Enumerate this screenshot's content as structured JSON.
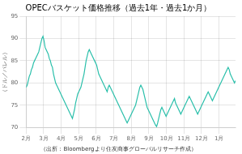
{
  "chart_data": {
    "type": "line",
    "title": "OPECバスケット価格推移（過去1年・過去1か月）",
    "ylabel": "（ドル／バレル）",
    "source": "（出所：Bloombergより住友商事グローバルリサーチ作成）",
    "color": "#2abfaa",
    "grid": true,
    "xlim": [
      0,
      199
    ],
    "xticks": [
      {
        "value": 0,
        "label": "2月"
      },
      {
        "value": 16.666666666666668,
        "label": "3月"
      },
      {
        "value": 33.333333333333336,
        "label": "4月"
      },
      {
        "value": 50,
        "label": "5月"
      },
      {
        "value": 66.66666666666667,
        "label": "6月"
      },
      {
        "value": 83.33333333333333,
        "label": "7月"
      },
      {
        "value": 100,
        "label": "8月"
      },
      {
        "value": 116.66666666666667,
        "label": "9月"
      },
      {
        "value": 133.33333333333334,
        "label": "10月"
      },
      {
        "value": 150,
        "label": "11月"
      },
      {
        "value": 166.66666666666666,
        "label": "12月"
      },
      {
        "value": 183.33333333333334,
        "label": "1月"
      }
    ],
    "ylim": [
      70,
      95
    ],
    "yticks": [
      70,
      75,
      80,
      85,
      90,
      95
    ],
    "x": [
      0,
      1,
      2,
      3,
      4,
      5,
      6,
      7,
      8,
      9,
      10,
      11,
      12,
      13,
      14,
      15,
      16,
      17,
      18,
      19,
      20,
      21,
      22,
      23,
      24,
      25,
      26,
      27,
      28,
      29,
      30,
      31,
      32,
      33,
      34,
      35,
      36,
      37,
      38,
      39,
      40,
      41,
      42,
      43,
      44,
      45,
      46,
      47,
      48,
      49,
      50,
      51,
      52,
      53,
      54,
      55,
      56,
      57,
      58,
      59,
      60,
      61,
      62,
      63,
      64,
      65,
      66,
      67,
      68,
      69,
      70,
      71,
      72,
      73,
      74,
      75,
      76,
      77,
      78,
      79,
      80,
      81,
      82,
      83,
      84,
      85,
      86,
      87,
      88,
      89,
      90,
      91,
      92,
      93,
      94,
      95,
      96,
      97,
      98,
      99,
      100,
      101,
      102,
      103,
      104,
      105,
      106,
      107,
      108,
      109,
      110,
      111,
      112,
      113,
      114,
      115,
      116,
      117,
      118,
      119,
      120,
      121,
      122,
      123,
      124,
      125,
      126,
      127,
      128,
      129,
      130,
      131,
      132,
      133,
      134,
      135,
      136,
      137,
      138,
      139,
      140,
      141,
      142,
      143,
      144,
      145,
      146,
      147,
      148,
      149,
      150,
      151,
      152,
      153,
      154,
      155,
      156,
      157,
      158,
      159,
      160,
      161,
      162,
      163,
      164,
      165,
      166,
      167,
      168,
      169,
      170,
      171,
      172,
      173,
      174,
      175,
      176,
      177,
      178,
      179,
      180,
      181,
      182,
      183,
      184,
      185,
      186,
      187,
      188,
      189,
      190,
      191,
      192,
      193,
      194,
      195,
      196,
      197,
      198,
      199
    ],
    "values": [
      79.0,
      79.5,
      80.5,
      81.5,
      82.0,
      83.0,
      83.5,
      84.5,
      85.0,
      85.5,
      86.0,
      86.5,
      87.0,
      88.0,
      89.0,
      90.0,
      90.5,
      89.5,
      88.0,
      87.5,
      87.0,
      86.5,
      85.5,
      85.0,
      84.0,
      83.5,
      82.0,
      81.0,
      80.0,
      79.5,
      79.0,
      78.5,
      78.0,
      77.5,
      77.0,
      76.5,
      76.0,
      75.5,
      75.0,
      74.5,
      74.0,
      73.5,
      73.0,
      72.5,
      72.0,
      73.0,
      74.0,
      75.5,
      76.5,
      77.5,
      78.0,
      78.5,
      79.0,
      80.0,
      81.0,
      82.0,
      83.5,
      85.0,
      86.0,
      87.0,
      87.5,
      87.0,
      86.5,
      86.0,
      85.5,
      85.0,
      84.5,
      84.0,
      83.0,
      82.0,
      81.5,
      81.0,
      80.5,
      80.0,
      79.5,
      79.0,
      78.5,
      78.0,
      79.0,
      79.5,
      79.0,
      78.5,
      78.0,
      77.5,
      77.0,
      76.5,
      76.0,
      75.5,
      75.0,
      74.5,
      74.0,
      73.5,
      73.0,
      72.5,
      72.0,
      71.5,
      71.0,
      71.5,
      72.0,
      72.5,
      73.0,
      73.5,
      74.0,
      74.5,
      75.0,
      76.0,
      77.0,
      78.0,
      79.0,
      79.5,
      79.0,
      78.5,
      77.5,
      76.5,
      75.5,
      74.5,
      74.0,
      73.5,
      73.0,
      72.5,
      72.0,
      71.5,
      71.0,
      70.5,
      70.2,
      71.0,
      72.0,
      73.0,
      74.0,
      74.5,
      74.0,
      73.5,
      73.0,
      72.5,
      73.0,
      73.5,
      74.0,
      74.5,
      75.0,
      75.5,
      76.0,
      76.5,
      75.5,
      75.0,
      74.5,
      74.0,
      73.5,
      73.0,
      73.5,
      74.0,
      74.5,
      75.0,
      75.5,
      76.0,
      76.5,
      77.0,
      76.5,
      76.0,
      75.5,
      75.0,
      74.5,
      74.0,
      73.5,
      73.0,
      73.5,
      74.0,
      74.5,
      75.0,
      75.5,
      76.0,
      76.5,
      77.0,
      77.5,
      78.0,
      77.5,
      77.0,
      76.5,
      76.0,
      76.5,
      77.0,
      77.5,
      78.0,
      78.5,
      79.0,
      79.5,
      80.0,
      80.5,
      81.0,
      81.5,
      82.0,
      82.5,
      83.0,
      83.5,
      83.0,
      82.0,
      81.5,
      81.0,
      80.5,
      80.0,
      80.5
    ]
  }
}
